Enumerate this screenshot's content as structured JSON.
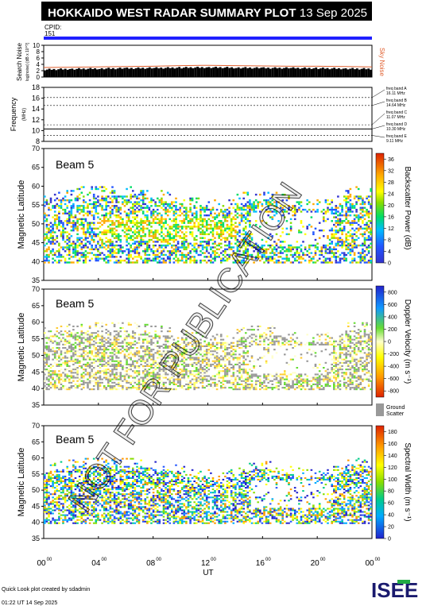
{
  "header": {
    "title": "HOKKAIDO WEST RADAR SUMMARY PLOT",
    "date": "13 Sep 2025",
    "cpid_label": "CPID:",
    "cpid_value": "151"
  },
  "colors": {
    "header_bg": "#000000",
    "header_text": "#ffffff",
    "cpid_bar": "#1f1fff",
    "noise_line": "#e06030",
    "ground_scatter": "#999999",
    "watermark": "#000000"
  },
  "watermark": "NOT FOR PUBLICATION",
  "footer": {
    "created_by": "Quick Look plot created by sdadmin",
    "timestamp": "01:22 UT 14 Sep 2025",
    "logo_text": "ISEE"
  },
  "chart_data": [
    {
      "type": "line",
      "panel": "search-noise",
      "ylabel": "Search Noise",
      "ylabel_sub": "log(noise) [dB x 10^?]",
      "ylim": [
        0,
        10
      ],
      "yticks": [
        0,
        2,
        4,
        6,
        8,
        10
      ],
      "x": [
        0,
        2,
        4,
        6,
        8,
        10,
        12,
        14,
        16,
        18,
        20,
        22,
        24
      ],
      "series": [
        {
          "name": "Sky Noise",
          "values": [
            3.0,
            3.1,
            3.2,
            3.3,
            3.4,
            3.6,
            3.7,
            3.6,
            3.5,
            3.4,
            3.4,
            3.3,
            3.2
          ]
        }
      ],
      "search_noise_bars": [
        2.1,
        2.3,
        2.4,
        2.5,
        2.6,
        2.7,
        2.8,
        2.7,
        2.6,
        2.6,
        2.5,
        2.4,
        2.3
      ]
    },
    {
      "type": "line",
      "panel": "frequency",
      "ylabel": "Frequency",
      "ylabel_sub": "(MHz)",
      "ylim": [
        8,
        18
      ],
      "yticks": [
        8,
        10,
        12,
        14,
        16,
        18
      ],
      "freq_bands": [
        {
          "label": "freq band A",
          "value": "16.11 MHz",
          "mhz": 16.11
        },
        {
          "label": "freq band B",
          "value": "14.64 MHz",
          "mhz": 14.64
        },
        {
          "label": "freq band C",
          "value": "11.07 MHz",
          "mhz": 11.07
        },
        {
          "label": "freq band D",
          "value": "10.30 MHz",
          "mhz": 10.3
        },
        {
          "label": "freq band E",
          "value": "9.11 MHz",
          "mhz": 9.11
        }
      ],
      "series": [
        {
          "values_x": [
            0,
            24
          ],
          "values": [
            10.3,
            10.3
          ]
        }
      ]
    },
    {
      "type": "heatmap",
      "panel": "power",
      "beam": "Beam  5",
      "ylabel": "Magnetic Latitude",
      "ylim": [
        35,
        70
      ],
      "yticks": [
        35,
        40,
        45,
        50,
        55,
        60,
        65,
        70
      ],
      "colorbar_label": "Backscatter Power (dB)",
      "colorbar_ticks": [
        "0",
        "4",
        "8",
        "12",
        "16",
        "20",
        "24",
        "28",
        "32",
        "36"
      ],
      "colorbar_range": [
        0,
        38
      ]
    },
    {
      "type": "heatmap",
      "panel": "velocity",
      "beam": "Beam  5",
      "ylabel": "Magnetic Latitude",
      "ylim": [
        35,
        70
      ],
      "yticks": [
        35,
        40,
        45,
        50,
        55,
        60,
        65,
        70
      ],
      "colorbar_label": "Doppler Velocity (m s⁻¹)",
      "colorbar_ticks": [
        "-800",
        "-600",
        "-400",
        "-200",
        "0",
        "200",
        "400",
        "600",
        "800"
      ],
      "colorbar_range": [
        -900,
        900
      ],
      "ground_scatter_label": [
        "Ground",
        "Scatter"
      ]
    },
    {
      "type": "heatmap",
      "panel": "width",
      "beam": "Beam  5",
      "ylabel": "Magnetic Latitude",
      "ylim": [
        35,
        70
      ],
      "yticks": [
        35,
        40,
        45,
        50,
        55,
        60,
        65,
        70
      ],
      "colorbar_label": "Spectral Width (m s⁻¹)",
      "colorbar_ticks": [
        "0",
        "20",
        "40",
        "60",
        "80",
        "100",
        "120",
        "140",
        "160",
        "180"
      ],
      "colorbar_range": [
        0,
        190
      ],
      "xlabel": "UT",
      "xticks": [
        {
          "hh": "00",
          "sup": "00"
        },
        {
          "hh": "04",
          "sup": "00"
        },
        {
          "hh": "08",
          "sup": "00"
        },
        {
          "hh": "12",
          "sup": "00"
        },
        {
          "hh": "16",
          "sup": "00"
        },
        {
          "hh": "20",
          "sup": "00"
        },
        {
          "hh": "00",
          "sup": "00"
        }
      ]
    }
  ]
}
